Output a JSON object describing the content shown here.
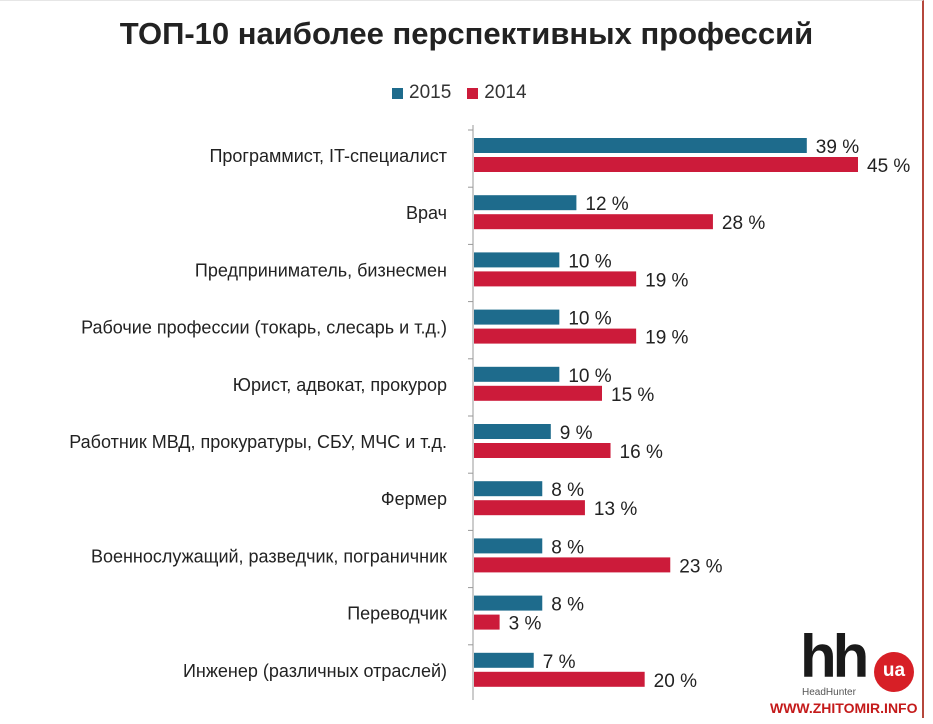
{
  "chart_data": {
    "type": "bar",
    "orientation": "horizontal",
    "title": "ТОП-10 наиболее перспективных профессий",
    "legend_position": "top",
    "grid": false,
    "xlim": [
      0,
      50
    ],
    "categories": [
      "Программист, IT-специалист",
      "Врач",
      "Предприниматель, бизнесмен",
      "Рабочие профессии (токарь, слесарь и т.д.)",
      "Юрист, адвокат, прокурор",
      "Работник МВД, прокуратуры, СБУ, МЧС и т.д.",
      "Фермер",
      "Военнослужащий, разведчик, пограничник",
      "Переводчик",
      "Инженер (различных отраслей)"
    ],
    "series": [
      {
        "name": "2015",
        "color": "#1e6b8c",
        "values": [
          39,
          12,
          10,
          10,
          10,
          9,
          8,
          8,
          8,
          7
        ]
      },
      {
        "name": "2014",
        "color": "#cc1b3a",
        "values": [
          45,
          28,
          19,
          19,
          15,
          16,
          13,
          23,
          3,
          20
        ]
      }
    ],
    "value_suffix": " %"
  },
  "logo": {
    "text": "hh",
    "badge": "ua",
    "subtitle": "HeadHunter"
  },
  "watermark": "WWW.ZHITOMIR.INFO"
}
